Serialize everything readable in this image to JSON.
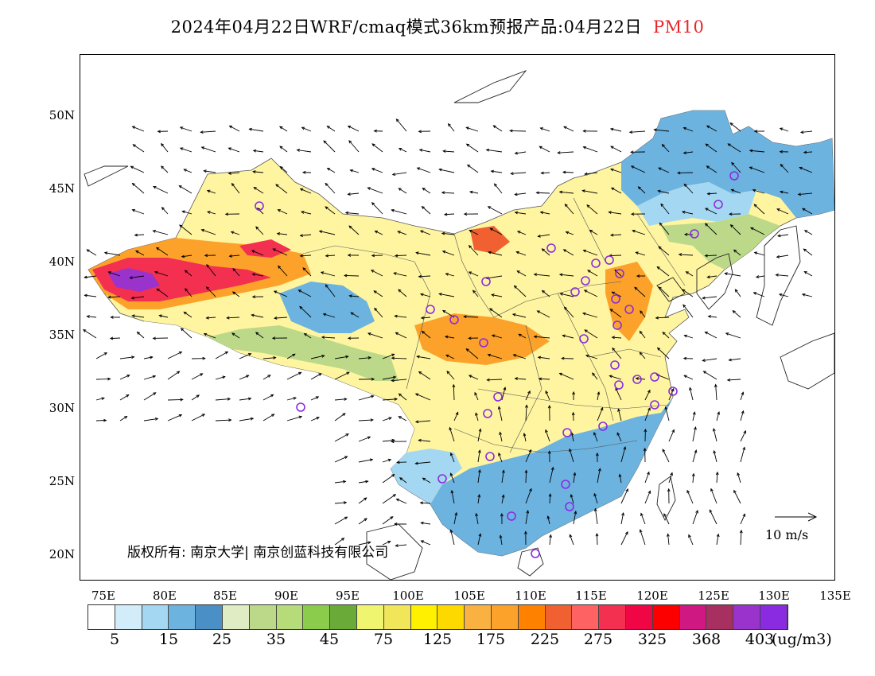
{
  "title": {
    "text": "2024年04月22日WRF/cmaq模式36km预报产品:04月22日",
    "pollutant": "PM10"
  },
  "axes": {
    "lat_labels": [
      "50N",
      "45N",
      "40N",
      "35N",
      "30N",
      "25N",
      "20N"
    ],
    "lon_labels": [
      "75E",
      "80E",
      "85E",
      "90E",
      "95E",
      "100E",
      "105E",
      "110E",
      "115E",
      "120E",
      "125E",
      "130E",
      "135E"
    ]
  },
  "copyright": "版权所有: 南京大学| 南京创蓝科技有限公司",
  "reference_vector": "10 m/s",
  "colorbar": {
    "colors": [
      "#ffffff",
      "#d3ecf9",
      "#a4d8f2",
      "#6cb3e0",
      "#4a8fc6",
      "#e0ecc4",
      "#bcd98a",
      "#b5dc78",
      "#8ccc4c",
      "#6aaa38",
      "#f0f570",
      "#f1e55a",
      "#fff000",
      "#fdd900",
      "#f9b141",
      "#fca22a",
      "#fe8200",
      "#f06030",
      "#fe6262",
      "#f33050",
      "#f00545",
      "#fc0000",
      "#d01882",
      "#a83060",
      "#9933cc",
      "#8a2be2"
    ],
    "tick_labels": [
      "5",
      "15",
      "25",
      "35",
      "45",
      "75",
      "125",
      "175",
      "225",
      "275",
      "325",
      "368",
      "403"
    ],
    "units": "(ug/m3)"
  },
  "map_colors": {
    "land": "#fff5a0",
    "north_blue": "#6cb3e0",
    "tibet_white": "#ffffff",
    "tarim_red": "#f33050",
    "tarim_purple": "#9933cc",
    "south_blue": "#6cb3e0",
    "orange_core": "#fca22a",
    "green_band": "#bcd98a",
    "city_marker": "#8a2be2"
  }
}
